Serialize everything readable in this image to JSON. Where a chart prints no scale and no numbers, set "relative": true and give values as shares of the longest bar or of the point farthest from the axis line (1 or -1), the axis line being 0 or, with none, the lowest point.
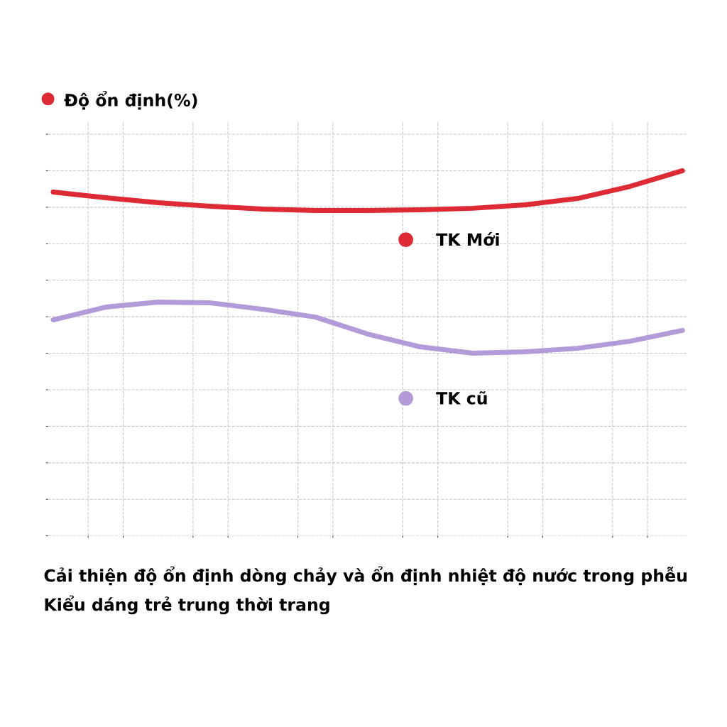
{
  "chart_data": {
    "type": "line",
    "ylabel": "Độ ổn định(%)",
    "relative": true,
    "categories": [
      null,
      null,
      null,
      null,
      null,
      null,
      null,
      null,
      null,
      null,
      null,
      null,
      null
    ],
    "series": [
      {
        "name": "TK Mới",
        "color": "#dd2a35",
        "values": [
          0.883,
          0.852,
          0.825,
          0.805,
          0.79,
          0.782,
          0.782,
          0.786,
          0.794,
          0.813,
          0.848,
          0.914,
          1
        ]
      },
      {
        "name": "TK cũ",
        "color": "#b39ad8",
        "values": [
          0.183,
          0.253,
          0.28,
          0.276,
          0.241,
          0.198,
          0.105,
          0.035,
          0,
          0.008,
          0.027,
          0.066,
          0.125
        ]
      }
    ],
    "grid": true,
    "legend": "center",
    "marker": "none",
    "line_style": "solid",
    "annotations": [
      "Cải thiện độ ổn định dòng chảy và ổn định nhiệt độ nước trong phễu",
      "Kiểu dáng trẻ trung thời trang"
    ]
  }
}
